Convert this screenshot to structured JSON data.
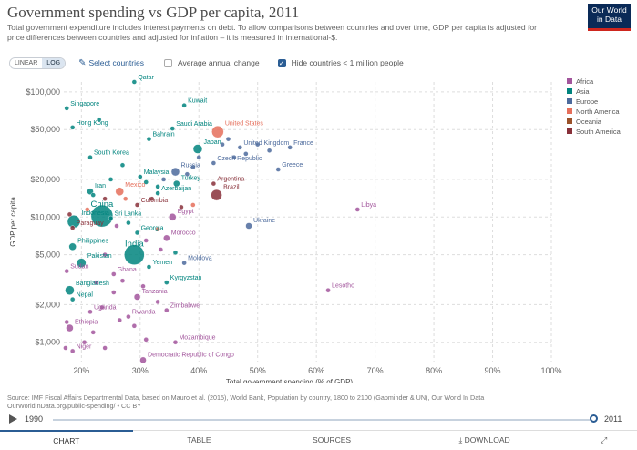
{
  "header": {
    "title": "Government spending vs GDP per capita, 2011",
    "subtitle": "Total government expenditure includes interest payments on debt. To allow comparisons between countries and over time, GDP per capita is adjusted for price differences between countries and adjusted for inflation – it is measured in international-$.",
    "logo_line1": "Our World",
    "logo_line2": "in Data"
  },
  "controls": {
    "linear_label": "LINEAR",
    "log_label": "LOG",
    "select_countries": "Select countries",
    "avg_change": "Average annual change",
    "hide_small": "Hide countries < 1 million people"
  },
  "colors": {
    "Africa": "#a2559c",
    "Asia": "#00847e",
    "Europe": "#4c6a9c",
    "North America": "#e56e5a",
    "Oceania": "#9a5129",
    "South America": "#883039"
  },
  "chart_data": {
    "type": "scatter",
    "xlabel": "Total government spending (% of GDP)",
    "ylabel": "GDP per capita",
    "x_scale": "linear",
    "y_scale": "log",
    "xlim": [
      17,
      100
    ],
    "ylim": [
      700,
      120000
    ],
    "x_ticks": [
      20,
      30,
      40,
      50,
      60,
      70,
      80,
      90,
      100
    ],
    "x_tick_labels": [
      "20%",
      "30%",
      "40%",
      "50%",
      "60%",
      "70%",
      "80%",
      "90%",
      "100%"
    ],
    "y_ticks": [
      1000,
      2000,
      5000,
      10000,
      20000,
      50000,
      100000
    ],
    "y_tick_labels": [
      "$1,000",
      "$2,000",
      "$5,000",
      "$10,000",
      "$20,000",
      "$50,000",
      "$100,000"
    ],
    "grid": true,
    "legend": {
      "placement": "top-right",
      "entries": [
        "Africa",
        "Asia",
        "Europe",
        "North America",
        "Oceania",
        "South America"
      ]
    },
    "points": [
      {
        "label": "Qatar",
        "x": 29,
        "y": 120000,
        "region": "Asia"
      },
      {
        "label": "Kuwait",
        "x": 37.5,
        "y": 78000,
        "region": "Asia"
      },
      {
        "label": "Singapore",
        "x": 17.5,
        "y": 74000,
        "region": "Asia"
      },
      {
        "label": "Hong Kong",
        "x": 18.5,
        "y": 52000,
        "region": "Asia"
      },
      {
        "label": "Saudi Arabia",
        "x": 35.5,
        "y": 51000,
        "region": "Asia"
      },
      {
        "label": "United States",
        "x": 43.2,
        "y": 48000,
        "region": "North America",
        "r": 6.5
      },
      {
        "label": "Bahrain",
        "x": 31.5,
        "y": 42000,
        "region": "Asia"
      },
      {
        "label": "Japan",
        "x": 39.8,
        "y": 35000,
        "region": "Asia",
        "r": 5
      },
      {
        "label": "United Kingdom",
        "x": 47,
        "y": 36000,
        "region": "Europe"
      },
      {
        "label": "France",
        "x": 55.5,
        "y": 36000,
        "region": "Europe"
      },
      {
        "label": "South Korea",
        "x": 21.5,
        "y": 30000,
        "region": "Asia"
      },
      {
        "label": "Czech Republic",
        "x": 42.5,
        "y": 27000,
        "region": "Europe"
      },
      {
        "label": "Greece",
        "x": 53.5,
        "y": 24000,
        "region": "Europe"
      },
      {
        "label": "Russia",
        "x": 36,
        "y": 23000,
        "region": "Europe",
        "r": 4.5
      },
      {
        "label": "Malaysia",
        "x": 30,
        "y": 21000,
        "region": "Asia"
      },
      {
        "label": "Turkey",
        "x": 36.2,
        "y": 18500,
        "region": "Asia",
        "r": 3.5
      },
      {
        "label": "Argentina",
        "x": 42.5,
        "y": 18500,
        "region": "South America"
      },
      {
        "label": "Iran",
        "x": 21.5,
        "y": 16000,
        "region": "Asia",
        "r": 3.5
      },
      {
        "label": "Azerbaijan",
        "x": 33,
        "y": 15500,
        "region": "Asia"
      },
      {
        "label": "Mexico",
        "x": 26.5,
        "y": 16000,
        "region": "North America",
        "r": 4.5
      },
      {
        "label": "Brazil",
        "x": 43,
        "y": 15000,
        "region": "South America",
        "r": 6
      },
      {
        "label": "Libya",
        "x": 67,
        "y": 11500,
        "region": "Africa"
      },
      {
        "label": "China",
        "x": 23.5,
        "y": 10200,
        "region": "Asia",
        "r": 12
      },
      {
        "label": "Colombia",
        "x": 29.5,
        "y": 12500,
        "region": "South America"
      },
      {
        "label": "Egypt",
        "x": 35.5,
        "y": 10000,
        "region": "Africa",
        "r": 4
      },
      {
        "label": "Indonesia",
        "x": 18.7,
        "y": 9200,
        "region": "Asia",
        "r": 7
      },
      {
        "label": "Sri Lanka",
        "x": 25,
        "y": 9800,
        "region": "Asia"
      },
      {
        "label": "Ukraine",
        "x": 48.5,
        "y": 8500,
        "region": "Europe",
        "r": 3.5
      },
      {
        "label": "Paraguay",
        "x": 18.5,
        "y": 8200,
        "region": "South America"
      },
      {
        "label": "Georgia",
        "x": 29.5,
        "y": 7500,
        "region": "Asia"
      },
      {
        "label": "Morocco",
        "x": 34.5,
        "y": 6800,
        "region": "Africa",
        "r": 3.5
      },
      {
        "label": "Philippines",
        "x": 18.5,
        "y": 5800,
        "region": "Asia",
        "r": 4
      },
      {
        "label": "India",
        "x": 29,
        "y": 5000,
        "region": "Asia",
        "r": 11
      },
      {
        "label": "Pakistan",
        "x": 20,
        "y": 4300,
        "region": "Asia",
        "r": 5
      },
      {
        "label": "Moldova",
        "x": 37.5,
        "y": 4300,
        "region": "Europe"
      },
      {
        "label": "Yemen",
        "x": 31.5,
        "y": 4000,
        "region": "Asia"
      },
      {
        "label": "Sudan",
        "x": 17.5,
        "y": 3700,
        "region": "Africa"
      },
      {
        "label": "Ghana",
        "x": 25.5,
        "y": 3500,
        "region": "Africa"
      },
      {
        "label": "Kyrgyzstan",
        "x": 34.5,
        "y": 3000,
        "region": "Asia"
      },
      {
        "label": "Bangladesh",
        "x": 18,
        "y": 2600,
        "region": "Asia",
        "r": 5
      },
      {
        "label": "Lesotho",
        "x": 62,
        "y": 2600,
        "region": "Africa"
      },
      {
        "label": "Nepal",
        "x": 18.5,
        "y": 2200,
        "region": "Asia"
      },
      {
        "label": "Tanzania",
        "x": 29.5,
        "y": 2300,
        "region": "Africa",
        "r": 3.5
      },
      {
        "label": "Zimbabwe",
        "x": 34.5,
        "y": 1800,
        "region": "Africa"
      },
      {
        "label": "Uganda",
        "x": 21.5,
        "y": 1750,
        "region": "Africa"
      },
      {
        "label": "Rwanda",
        "x": 28,
        "y": 1600,
        "region": "Africa"
      },
      {
        "label": "Ethiopia",
        "x": 18,
        "y": 1300,
        "region": "Africa",
        "r": 4
      },
      {
        "label": "Mozambique",
        "x": 36,
        "y": 1000,
        "region": "Africa"
      },
      {
        "label": "Niger",
        "x": 18.5,
        "y": 850,
        "region": "Africa"
      },
      {
        "label": "Democratic Republic of Congo",
        "x": 30.5,
        "y": 720,
        "region": "Africa",
        "r": 3.5
      },
      {
        "label": "",
        "x": 23,
        "y": 60000,
        "region": "Asia"
      },
      {
        "label": "",
        "x": 45,
        "y": 42000,
        "region": "Europe"
      },
      {
        "label": "",
        "x": 50,
        "y": 38000,
        "region": "Europe"
      },
      {
        "label": "",
        "x": 52,
        "y": 34000,
        "region": "Europe"
      },
      {
        "label": "",
        "x": 48,
        "y": 32000,
        "region": "Europe"
      },
      {
        "label": "",
        "x": 44,
        "y": 38000,
        "region": "Europe"
      },
      {
        "label": "",
        "x": 46,
        "y": 30000,
        "region": "Europe"
      },
      {
        "label": "",
        "x": 40,
        "y": 30000,
        "region": "Europe"
      },
      {
        "label": "",
        "x": 39,
        "y": 25000,
        "region": "Europe"
      },
      {
        "label": "",
        "x": 38,
        "y": 22000,
        "region": "Europe"
      },
      {
        "label": "",
        "x": 34,
        "y": 20000,
        "region": "Europe"
      },
      {
        "label": "",
        "x": 33,
        "y": 17500,
        "region": "Asia"
      },
      {
        "label": "",
        "x": 31,
        "y": 19000,
        "region": "Asia"
      },
      {
        "label": "",
        "x": 27,
        "y": 26000,
        "region": "Asia"
      },
      {
        "label": "",
        "x": 25,
        "y": 20000,
        "region": "Asia"
      },
      {
        "label": "",
        "x": 22,
        "y": 15000,
        "region": "Asia"
      },
      {
        "label": "",
        "x": 24,
        "y": 14000,
        "region": "South America"
      },
      {
        "label": "",
        "x": 27.5,
        "y": 14000,
        "region": "North America"
      },
      {
        "label": "",
        "x": 32,
        "y": 14000,
        "region": "South America"
      },
      {
        "label": "",
        "x": 37,
        "y": 12000,
        "region": "South America"
      },
      {
        "label": "",
        "x": 39,
        "y": 12500,
        "region": "North America"
      },
      {
        "label": "",
        "x": 21,
        "y": 11500,
        "region": "North America"
      },
      {
        "label": "",
        "x": 18,
        "y": 10500,
        "region": "South America"
      },
      {
        "label": "",
        "x": 26,
        "y": 8500,
        "region": "Africa"
      },
      {
        "label": "",
        "x": 28,
        "y": 9000,
        "region": "Asia"
      },
      {
        "label": "",
        "x": 33,
        "y": 8000,
        "region": "North America"
      },
      {
        "label": "",
        "x": 31,
        "y": 6500,
        "region": "Africa"
      },
      {
        "label": "",
        "x": 33.5,
        "y": 5500,
        "region": "Africa"
      },
      {
        "label": "",
        "x": 36,
        "y": 5200,
        "region": "Asia"
      },
      {
        "label": "",
        "x": 24,
        "y": 5000,
        "region": "Africa"
      },
      {
        "label": "",
        "x": 22.5,
        "y": 3000,
        "region": "Africa"
      },
      {
        "label": "",
        "x": 27,
        "y": 3100,
        "region": "Africa"
      },
      {
        "label": "",
        "x": 30.5,
        "y": 2800,
        "region": "Africa"
      },
      {
        "label": "",
        "x": 25.5,
        "y": 2500,
        "region": "Africa"
      },
      {
        "label": "",
        "x": 33,
        "y": 2100,
        "region": "Africa"
      },
      {
        "label": "",
        "x": 23.5,
        "y": 1900,
        "region": "Africa"
      },
      {
        "label": "",
        "x": 26.5,
        "y": 1500,
        "region": "Africa"
      },
      {
        "label": "",
        "x": 29,
        "y": 1350,
        "region": "Africa"
      },
      {
        "label": "",
        "x": 22,
        "y": 1200,
        "region": "Africa"
      },
      {
        "label": "",
        "x": 20.5,
        "y": 1000,
        "region": "Africa"
      },
      {
        "label": "",
        "x": 24,
        "y": 900,
        "region": "Africa"
      },
      {
        "label": "",
        "x": 17.5,
        "y": 1450,
        "region": "Africa"
      },
      {
        "label": "",
        "x": 31,
        "y": 1050,
        "region": "Africa"
      },
      {
        "label": "",
        "x": 17.3,
        "y": 900,
        "region": "Africa"
      }
    ]
  },
  "footer": {
    "source_line1": "Source: IMF Fiscal Affairs Departmental Data, based on Mauro et al. (2015), World Bank, Population by country, 1800 to 2100 (Gapminder & UN), Our World In Data",
    "source_line2": "OurWorldInData.org/public-spending/ • CC BY",
    "timeline_start": "1990",
    "timeline_end": "2011",
    "tabs": [
      "CHART",
      "TABLE",
      "SOURCES",
      "DOWNLOAD"
    ],
    "download_icon": "download-icon",
    "expand_icon": "expand-icon"
  }
}
